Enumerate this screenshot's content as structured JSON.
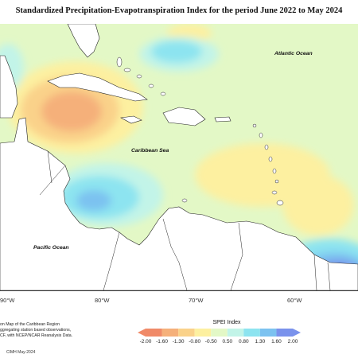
{
  "title": "Standardized Precipitation-Evapotranspiration Index for the period June 2022 to May 2024",
  "places": {
    "atlantic": "Atlantic Ocean",
    "caribbean": "Caribbean Sea",
    "pacific": "Pacific Ocean"
  },
  "axis_ticks": [
    "90°W",
    "80°W",
    "70°W",
    "60°W"
  ],
  "notes": [
    "on Map of the Caribbean Region",
    "ggregating station based observations,",
    "CF, with NCEP/NCAR Reanalysis Data."
  ],
  "credit": "CIMH May-2024",
  "legend": {
    "title": "SPEI Index",
    "labels": [
      "-2.00",
      "-1.60",
      "-1.30",
      "-0.80",
      "-0.50",
      "0.50",
      "0.80",
      "1.30",
      "1.60",
      "2.00"
    ],
    "colors": [
      "#f08a68",
      "#f5b07a",
      "#fad28a",
      "#fdf0a0",
      "#e3f8c6",
      "#c2f4e8",
      "#8de4f0",
      "#7cc2f0",
      "#7a92ec"
    ]
  }
}
